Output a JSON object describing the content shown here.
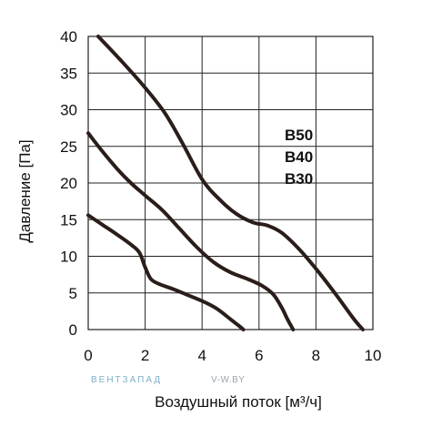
{
  "chart_data": {
    "type": "line",
    "title": "",
    "xlabel": "Воздушный поток [м³/ч]",
    "ylabel": "Давление [Па]",
    "xlim": [
      0,
      10
    ],
    "ylim": [
      0,
      40
    ],
    "xticks": [
      0,
      2,
      4,
      6,
      8,
      10
    ],
    "yticks": [
      0,
      5,
      10,
      15,
      20,
      25,
      30,
      35,
      40
    ],
    "grid": true,
    "legend": {
      "placement": "right",
      "entries": [
        "B50",
        "B40",
        "B30"
      ]
    },
    "line_color": "#2a1d1a",
    "series": [
      {
        "name": "B50",
        "x": [
          0.35,
          1.2,
          2.0,
          2.7,
          3.3,
          4.0,
          4.6,
          5.2,
          5.8,
          6.3,
          6.8,
          7.4,
          8.0,
          8.7,
          9.3,
          9.65
        ],
        "y": [
          40,
          36.5,
          33,
          29.5,
          25.5,
          20.5,
          17.8,
          15.8,
          14.6,
          14.2,
          13.2,
          11,
          8.3,
          4.8,
          1.6,
          0
        ]
      },
      {
        "name": "B40",
        "x": [
          0.0,
          0.5,
          1.0,
          1.5,
          2.0,
          2.6,
          3.2,
          3.8,
          4.4,
          5.0,
          5.6,
          6.1,
          6.5,
          6.8,
          7.0,
          7.2
        ],
        "y": [
          26.8,
          24.3,
          22,
          20,
          18.3,
          16.3,
          13.8,
          11.3,
          9.2,
          7.8,
          6.9,
          6.0,
          4.8,
          3.0,
          1.4,
          0
        ]
      },
      {
        "name": "B30",
        "x": [
          0.0,
          0.5,
          1.0,
          1.5,
          1.8,
          2.0,
          2.2,
          2.5,
          3.0,
          3.5,
          4.0,
          4.5,
          5.0,
          5.3,
          5.45
        ],
        "y": [
          15.6,
          14.3,
          13,
          11.6,
          10.5,
          8.5,
          6.9,
          6.2,
          5.5,
          4.7,
          3.9,
          2.9,
          1.4,
          0.5,
          0
        ]
      }
    ]
  },
  "watermark": {
    "brand": "ВЕНТЗАПАД",
    "site": "V-W.BY"
  }
}
